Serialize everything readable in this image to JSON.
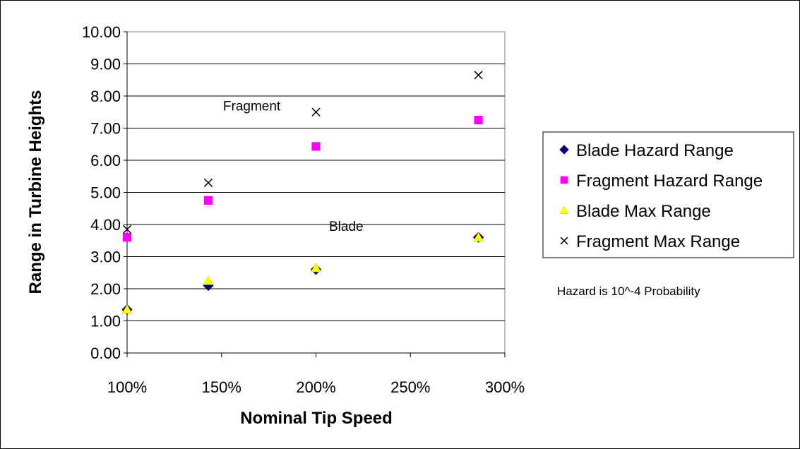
{
  "chart_data": {
    "type": "scatter",
    "xlabel": "Nominal Tip Speed",
    "ylabel": "Range in Turbine Heights",
    "xlim": [
      1.0,
      3.0
    ],
    "ylim": [
      0,
      10
    ],
    "x_ticks": [
      "100%",
      "150%",
      "200%",
      "250%",
      "300%"
    ],
    "y_ticks": [
      "0.00",
      "1.00",
      "2.00",
      "3.00",
      "4.00",
      "5.00",
      "6.00",
      "7.00",
      "8.00",
      "9.00",
      "10.00"
    ],
    "grid": "horizontal",
    "legend_position": "right",
    "series": [
      {
        "name": "Blade Hazard Range",
        "marker": "diamond",
        "color": "#000080",
        "x": [
          1.0,
          1.43,
          2.0,
          2.86
        ],
        "y": [
          1.35,
          2.1,
          2.6,
          3.6
        ]
      },
      {
        "name": "Fragment Hazard Range",
        "marker": "square",
        "color": "#ff00ff",
        "x": [
          1.0,
          1.43,
          2.0,
          2.86
        ],
        "y": [
          3.6,
          4.75,
          6.43,
          7.25
        ]
      },
      {
        "name": "Blade Max Range",
        "marker": "triangle",
        "color": "#ffff00",
        "x": [
          1.0,
          1.43,
          2.0,
          2.86
        ],
        "y": [
          1.35,
          2.25,
          2.65,
          3.6
        ]
      },
      {
        "name": "Fragment Max Range",
        "marker": "x",
        "color": "#000000",
        "x": [
          1.0,
          1.43,
          2.0,
          2.86
        ],
        "y": [
          3.85,
          5.3,
          7.5,
          8.65
        ]
      }
    ],
    "annotations": [
      {
        "text": "Fragment",
        "x": 1.66,
        "y": 7.55
      },
      {
        "text": "Blade",
        "x": 2.16,
        "y": 3.8
      }
    ],
    "note": "Hazard is 10^-4 Probability"
  }
}
